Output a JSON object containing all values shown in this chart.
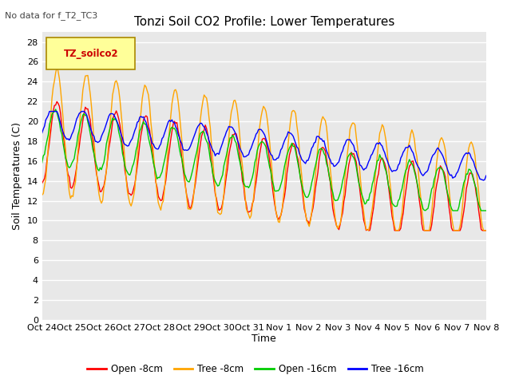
{
  "title": "Tonzi Soil CO2 Profile: Lower Temperatures",
  "subtitle": "No data for f_T2_TC3",
  "ylabel": "Soil Temperatures (C)",
  "xlabel": "Time",
  "ylim": [
    0,
    29
  ],
  "yticks": [
    0,
    2,
    4,
    6,
    8,
    10,
    12,
    14,
    16,
    18,
    20,
    22,
    24,
    26,
    28
  ],
  "xtick_labels": [
    "Oct 24",
    "Oct 25",
    "Oct 26",
    "Oct 27",
    "Oct 28",
    "Oct 29",
    "Oct 30",
    "Oct 31",
    "Nov 1",
    "Nov 2",
    "Nov 3",
    "Nov 4",
    "Nov 5",
    "Nov 6",
    "Nov 7",
    "Nov 8"
  ],
  "colors": {
    "open8": "#ff0000",
    "tree8": "#ffa500",
    "open16": "#00cc00",
    "tree16": "#0000ff"
  },
  "legend_labels": [
    "Open -8cm",
    "Tree -8cm",
    "Open -16cm",
    "Tree -16cm"
  ],
  "legend_box_color": "#ffff99",
  "legend_box_label": "TZ_soilco2",
  "plot_bg_color": "#e8e8e8",
  "fig_bg_color": "#ffffff",
  "grid_color": "#ffffff",
  "title_fontsize": 11,
  "label_fontsize": 9,
  "tick_fontsize": 8,
  "subtitle_fontsize": 8
}
